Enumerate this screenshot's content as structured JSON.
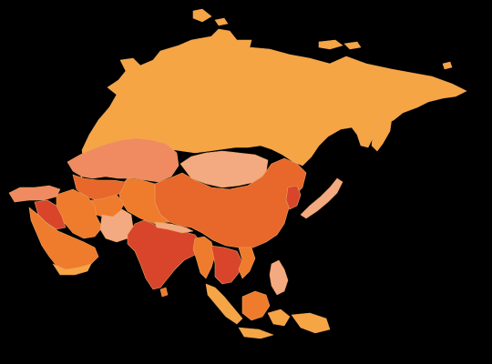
{
  "map": {
    "background": "#000000",
    "palette": {
      "light-orange": "#f6a545",
      "salmon": "#f08a60",
      "pale-peach": "#f4aa80",
      "orange": "#ef7b2c",
      "dark-orange": "#e8672a",
      "red-orange": "#d8452a",
      "deep-red": "#c73a1f"
    },
    "regions": [
      {
        "id": "russia",
        "fill": "light-orange"
      },
      {
        "id": "kazakhstan",
        "fill": "salmon"
      },
      {
        "id": "mongolia",
        "fill": "pale-peach"
      },
      {
        "id": "china",
        "fill": "dark-orange"
      },
      {
        "id": "tibet-west-china",
        "fill": "orange"
      },
      {
        "id": "central-asia",
        "fill": "dark-orange"
      },
      {
        "id": "afghanistan",
        "fill": "orange"
      },
      {
        "id": "iran",
        "fill": "orange"
      },
      {
        "id": "pakistan",
        "fill": "pale-peach"
      },
      {
        "id": "india",
        "fill": "red-orange"
      },
      {
        "id": "nepal-bhutan",
        "fill": "pale-peach"
      },
      {
        "id": "turkey",
        "fill": "salmon"
      },
      {
        "id": "levant",
        "fill": "red-orange"
      },
      {
        "id": "arabian-peninsula",
        "fill": "orange"
      },
      {
        "id": "arabia-south",
        "fill": "light-orange"
      },
      {
        "id": "myanmar",
        "fill": "orange"
      },
      {
        "id": "thailand-indochina",
        "fill": "red-orange"
      },
      {
        "id": "vietnam",
        "fill": "orange"
      },
      {
        "id": "korea",
        "fill": "red-orange"
      },
      {
        "id": "japan",
        "fill": "pale-peach"
      },
      {
        "id": "philippines",
        "fill": "pale-peach"
      },
      {
        "id": "malaysia-sumatra",
        "fill": "light-orange"
      },
      {
        "id": "borneo",
        "fill": "orange"
      },
      {
        "id": "indonesia-islands",
        "fill": "light-orange"
      },
      {
        "id": "sri-lanka",
        "fill": "orange"
      },
      {
        "id": "sakhalin-kamchatka",
        "fill": "light-orange"
      },
      {
        "id": "arctic-islands",
        "fill": "light-orange"
      }
    ]
  }
}
